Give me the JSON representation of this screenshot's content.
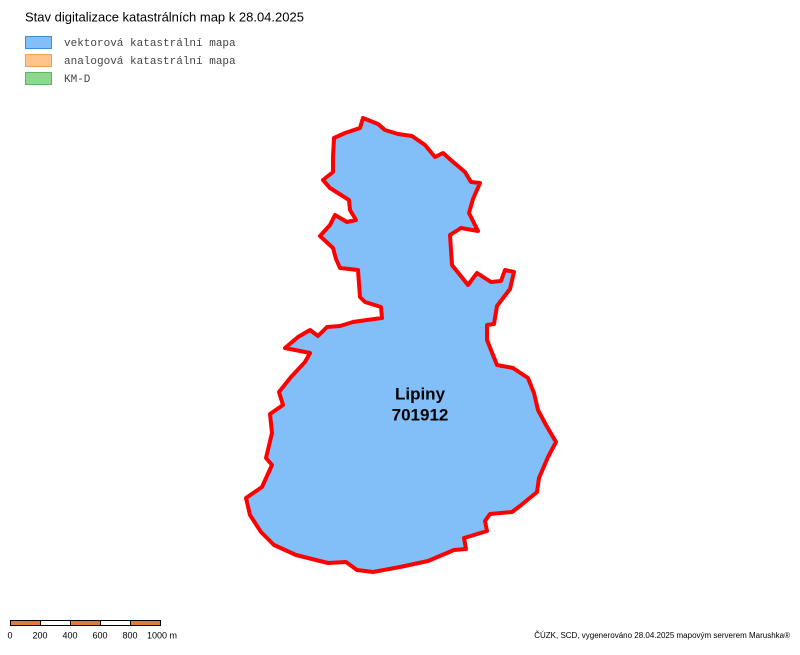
{
  "title": "Stav digitalizace katastrálních map k 28.04.2025",
  "legend": [
    "vektorová katastrální mapa",
    "analogová katastrální mapa",
    "KM-D"
  ],
  "area": {
    "name": "Lipiny",
    "code": "701912"
  },
  "scale": [
    "0",
    "200",
    "400",
    "600",
    "800",
    "1000 m"
  ],
  "credit": "ČÚZK, SCD, vygenerováno 28.04.2025 mapovým serverem Marushka®"
}
